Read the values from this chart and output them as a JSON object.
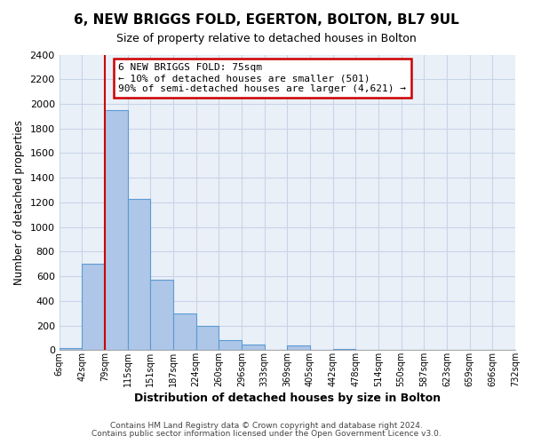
{
  "title": "6, NEW BRIGGS FOLD, EGERTON, BOLTON, BL7 9UL",
  "subtitle": "Size of property relative to detached houses in Bolton",
  "xlabel": "Distribution of detached houses by size in Bolton",
  "ylabel": "Number of detached properties",
  "bin_labels": [
    "6sqm",
    "42sqm",
    "79sqm",
    "115sqm",
    "151sqm",
    "187sqm",
    "224sqm",
    "260sqm",
    "296sqm",
    "333sqm",
    "369sqm",
    "405sqm",
    "442sqm",
    "478sqm",
    "514sqm",
    "550sqm",
    "587sqm",
    "623sqm",
    "659sqm",
    "696sqm",
    "732sqm"
  ],
  "bar_heights": [
    15,
    700,
    1950,
    1230,
    575,
    300,
    200,
    85,
    45,
    0,
    35,
    0,
    10,
    0,
    0,
    0,
    0,
    0,
    0,
    0
  ],
  "bar_color": "#aec6e8",
  "bar_edge_color": "#5b9bd5",
  "property_line_color": "#cc0000",
  "annotation_text": "6 NEW BRIGGS FOLD: 75sqm\n← 10% of detached houses are smaller (501)\n90% of semi-detached houses are larger (4,621) →",
  "annotation_box_color": "#ffffff",
  "annotation_box_edge_color": "#cc0000",
  "ylim": [
    0,
    2400
  ],
  "yticks": [
    0,
    200,
    400,
    600,
    800,
    1000,
    1200,
    1400,
    1600,
    1800,
    2000,
    2200,
    2400
  ],
  "footer1": "Contains HM Land Registry data © Crown copyright and database right 2024.",
  "footer2": "Contains public sector information licensed under the Open Government Licence v3.0.",
  "bg_color": "#ffffff",
  "axes_bg_color": "#eaf0f8",
  "grid_color": "#c8d4e8"
}
